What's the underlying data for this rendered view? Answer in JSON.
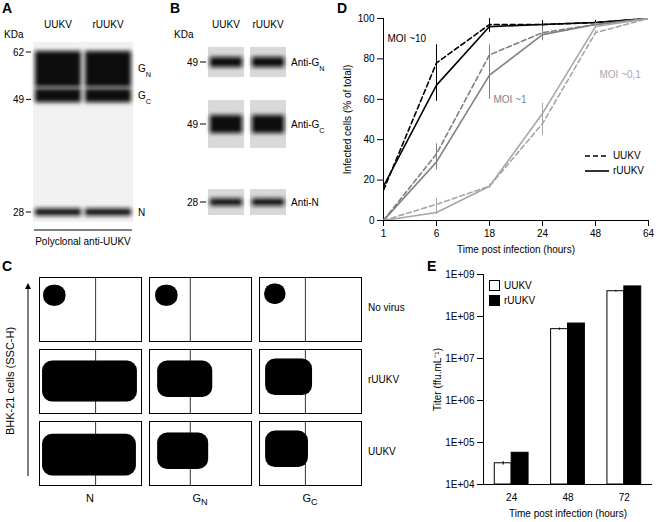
{
  "chart_data": [
    {
      "panel": "A",
      "type": "blot",
      "unit": "KDa",
      "lanes": [
        "UUKV",
        "rUUKV"
      ],
      "markers": [
        62,
        49,
        28
      ],
      "bands": [
        {
          "label": [
            "G",
            "N"
          ],
          "kda": 57
        },
        {
          "label": [
            "G",
            "C"
          ],
          "kda": 50
        },
        {
          "label": [
            "N"
          ],
          "kda": 28
        }
      ],
      "caption": "Polyclonal anti-UUKV"
    },
    {
      "panel": "B",
      "type": "blot",
      "unit": "KDa",
      "lanes": [
        "UUKV",
        "rUUKV"
      ],
      "strips": [
        {
          "label": [
            "Anti-G",
            "N"
          ],
          "marker": 49
        },
        {
          "label": [
            "Anti-G",
            "C"
          ],
          "marker": 49
        },
        {
          "label": [
            "Anti-N"
          ],
          "marker": 28
        }
      ]
    },
    {
      "panel": "C",
      "type": "flow_cytometry",
      "y_label": "BHK-21 cells (SSC-H)",
      "columns": [
        [
          "N"
        ],
        [
          "G",
          "N"
        ],
        [
          "G",
          "C"
        ]
      ],
      "rows": [
        "No virus",
        "rUUKV",
        "UUKV"
      ],
      "xlim": [
        0,
        100
      ],
      "ylim": [
        0,
        100
      ],
      "tick_labels": false,
      "cells": [
        [
          {
            "x": [
              4,
              26
            ],
            "y": [
              55,
              88
            ],
            "gate": 55
          },
          {
            "x": [
              6,
              28
            ],
            "y": [
              55,
              88
            ],
            "gate": 40
          },
          {
            "x": [
              5,
              26
            ],
            "y": [
              58,
              90
            ],
            "gate": 45
          }
        ],
        [
          {
            "x": [
              3,
              96
            ],
            "y": [
              18,
              82
            ],
            "gate": 55
          },
          {
            "x": [
              8,
              62
            ],
            "y": [
              25,
              82
            ],
            "gate": 40
          },
          {
            "x": [
              6,
              52
            ],
            "y": [
              28,
              85
            ],
            "gate": 45
          }
        ],
        [
          {
            "x": [
              3,
              95
            ],
            "y": [
              15,
              80
            ],
            "gate": 55
          },
          {
            "x": [
              8,
              58
            ],
            "y": [
              25,
              82
            ],
            "gate": 40
          },
          {
            "x": [
              6,
              48
            ],
            "y": [
              28,
              85
            ],
            "gate": 45
          }
        ]
      ]
    },
    {
      "panel": "D",
      "type": "line",
      "x_label": "Time post infection (hours)",
      "y_label": "Infected cells (% of total)",
      "categories": [
        "1",
        "6",
        "18",
        "24",
        "48",
        "64"
      ],
      "ylim": [
        0,
        100
      ],
      "yticks": [
        0,
        20,
        40,
        60,
        80,
        100
      ],
      "legend": "right",
      "series": [
        {
          "name": "UUKV",
          "color": "#000000",
          "line_style": "dashed",
          "values": [
            15,
            78,
            97,
            97,
            98,
            100
          ],
          "errors": [
            1,
            9,
            3,
            2,
            1,
            0
          ]
        },
        {
          "name": "rUUKV",
          "color": "#000000",
          "line_style": "solid",
          "values": [
            17,
            67,
            96,
            97,
            98,
            100
          ],
          "errors": [
            1,
            8,
            3,
            2,
            1,
            0
          ]
        },
        {
          "name": "UUKV",
          "color": "#7f7f7f",
          "line_style": "dashed",
          "values": [
            0,
            33,
            82,
            93,
            97,
            100
          ],
          "errors": [
            0,
            5,
            5,
            3,
            1,
            0
          ]
        },
        {
          "name": "rUUKV",
          "color": "#7f7f7f",
          "line_style": "solid",
          "values": [
            0,
            29,
            72,
            92,
            97,
            100
          ],
          "errors": [
            0,
            4,
            12,
            3,
            1,
            0
          ]
        },
        {
          "name": "UUKV",
          "color": "#a6a6a6",
          "line_style": "dashed",
          "values": [
            0,
            8,
            17,
            48,
            93,
            100
          ],
          "errors": [
            0,
            3,
            1,
            6,
            1,
            0
          ]
        },
        {
          "name": "rUUKV",
          "color": "#a6a6a6",
          "line_style": "solid",
          "values": [
            0,
            4,
            17,
            53,
            96,
            100
          ],
          "errors": [
            0,
            1,
            1,
            5,
            1,
            0
          ]
        }
      ],
      "annotations": [
        {
          "text": "MOI ~10",
          "x": "1",
          "y": 90,
          "color": "#000000"
        },
        {
          "text": "MOI ~1",
          "x": "18",
          "y": 60,
          "color": "#7f7f7f"
        },
        {
          "text": "MOI ~0,1",
          "x": "48",
          "y": 72,
          "color": "#a6a6a6"
        }
      ]
    },
    {
      "panel": "E",
      "type": "bar",
      "x_label": "Time post infection (hours)",
      "y_label": "Titer (ffu.mL⁻¹)",
      "categories": [
        "24",
        "48",
        "72"
      ],
      "log": "y",
      "ylim": [
        10000,
        1000000000
      ],
      "yticks": [
        {
          "value": 10000,
          "label": "1E+04"
        },
        {
          "value": 100000,
          "label": "1E+05"
        },
        {
          "value": 1000000,
          "label": "1E+06"
        },
        {
          "value": 10000000,
          "label": "1E+07"
        },
        {
          "value": 100000000,
          "label": "1E+08"
        },
        {
          "value": 1000000000,
          "label": "1E+09"
        }
      ],
      "legend": "top-left",
      "series": [
        {
          "name": "UUKV",
          "color": "#ffffff",
          "values": [
            32000,
            50000000,
            400000000
          ],
          "errors": [
            3000,
            3000000,
            20000000
          ]
        },
        {
          "name": "rUUKV",
          "color": "#000000",
          "values": [
            57000,
            68000000,
            520000000
          ],
          "errors": [
            0,
            0,
            0
          ]
        }
      ]
    }
  ]
}
